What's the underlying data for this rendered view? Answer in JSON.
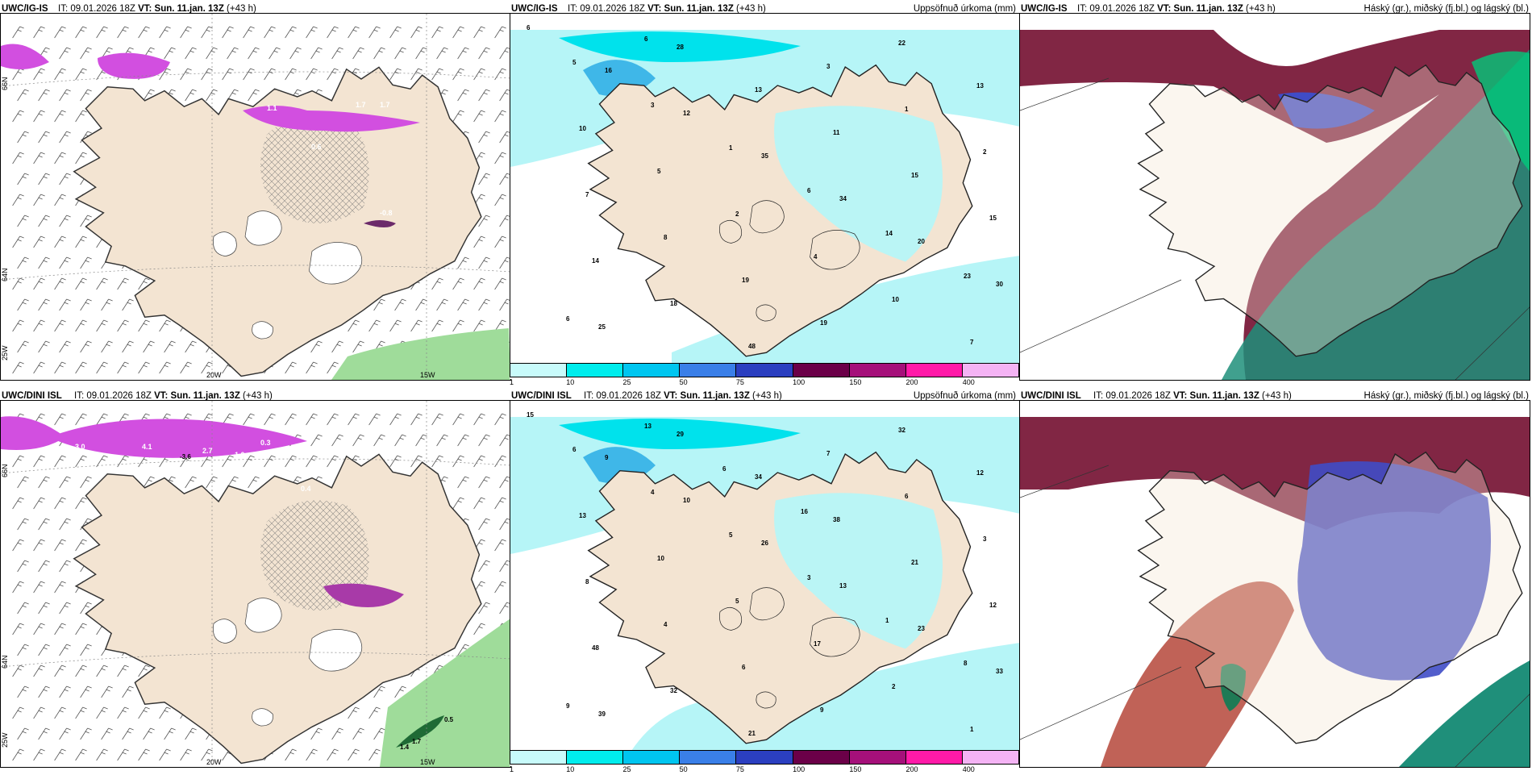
{
  "panels": [
    {
      "model": "UWC/IG-IS",
      "init": "IT: 09.01.2026 18Z",
      "vt": "VT: Sun. 11.jan. 13Z",
      "lead": "(+43 h)",
      "right_title": ""
    },
    {
      "model": "UWC/IG-IS",
      "init": "IT: 09.01.2026 18Z",
      "vt": "VT: Sun. 11.jan. 13Z",
      "lead": "(+43 h)",
      "right_title": "Uppsöfnuð úrkoma (mm)"
    },
    {
      "model": "UWC/IG-IS",
      "init": "IT: 09.01.2026 18Z",
      "vt": "VT: Sun. 11.jan. 13Z",
      "lead": "(+43 h)",
      "right_title": "Háský (gr.), miðský (fj.bl.) og lágský (bl.)"
    },
    {
      "model": "UWC/DINI ISL",
      "init": "IT: 09.01.2026 18Z",
      "vt": "VT: Sun. 11.jan. 13Z",
      "lead": "(+43 h)",
      "right_title": ""
    },
    {
      "model": "UWC/DINI ISL",
      "init": "IT: 09.01.2026 18Z",
      "vt": "VT: Sun. 11.jan. 13Z",
      "lead": "(+43 h)",
      "right_title": "Uppsöfnuð úrkoma (mm)"
    },
    {
      "model": "UWC/DINI ISL",
      "init": "IT: 09.01.2026 18Z",
      "vt": "VT: Sun. 11.jan. 13Z",
      "lead": "(+43 h)",
      "right_title": "Háský (gr.), miðský (fj.bl.) og lágský (bl.)"
    }
  ],
  "axes": {
    "lon_labels": [
      "20W",
      "15W"
    ],
    "lat_labels": [
      "66N",
      "64N",
      "25W"
    ]
  },
  "colorbar": {
    "ticks": [
      "1",
      "10",
      "25",
      "50",
      "75",
      "100",
      "150",
      "200",
      "400"
    ],
    "colors": [
      "#c8fbfb",
      "#00eded",
      "#00c6f0",
      "#3a7fe8",
      "#2b3fc0",
      "#6b0048",
      "#a5107a",
      "#ff1aa8",
      "#f4b3f4"
    ]
  },
  "precip_top_labels": [
    "6",
    "16",
    "12",
    "35",
    "34",
    "20",
    "30",
    "25",
    "28",
    "13",
    "11",
    "15",
    "15",
    "14",
    "18",
    "48",
    "3",
    "1",
    "2",
    "7",
    "8",
    "19",
    "19",
    "22",
    "13",
    "10",
    "5",
    "2",
    "4",
    "10",
    "7",
    "5",
    "3",
    "1",
    "6",
    "14",
    "23",
    "6",
    "6"
  ],
  "precip_bottom_labels": [
    "15",
    "9",
    "10",
    "26",
    "13",
    "23",
    "33",
    "39",
    "29",
    "34",
    "38",
    "21",
    "12",
    "48",
    "32",
    "21",
    "7",
    "6",
    "3",
    "8",
    "4",
    "6",
    "9",
    "32",
    "12",
    "13",
    "10",
    "5",
    "17",
    "2",
    "1",
    "6",
    "4",
    "5",
    "3",
    "1",
    "8",
    "9",
    "13",
    "6",
    "16"
  ],
  "wind_top_labels": [
    "1.9",
    "1.0",
    "1.1",
    "1.7",
    "1.7",
    "0.6",
    "-0.8"
  ],
  "wind_bottom_labels": [
    "3.0",
    "4.1",
    "2.7",
    "1.0",
    "0.3",
    "-3.6",
    "0.4",
    "0.5",
    "1.4",
    "1.7"
  ],
  "colors": {
    "land": "#f3e4d2",
    "precip_light": "#b6f5f7",
    "precip_mid": "#00e2ec",
    "precip_blue": "#3fb7e8",
    "purple_precip": "#d24fe0",
    "green_precip": "#9fdc9a",
    "cloud_high": "#7a1a3a",
    "cloud_mid": "#3f4cc6",
    "cloud_low": "#1f8f7a"
  }
}
